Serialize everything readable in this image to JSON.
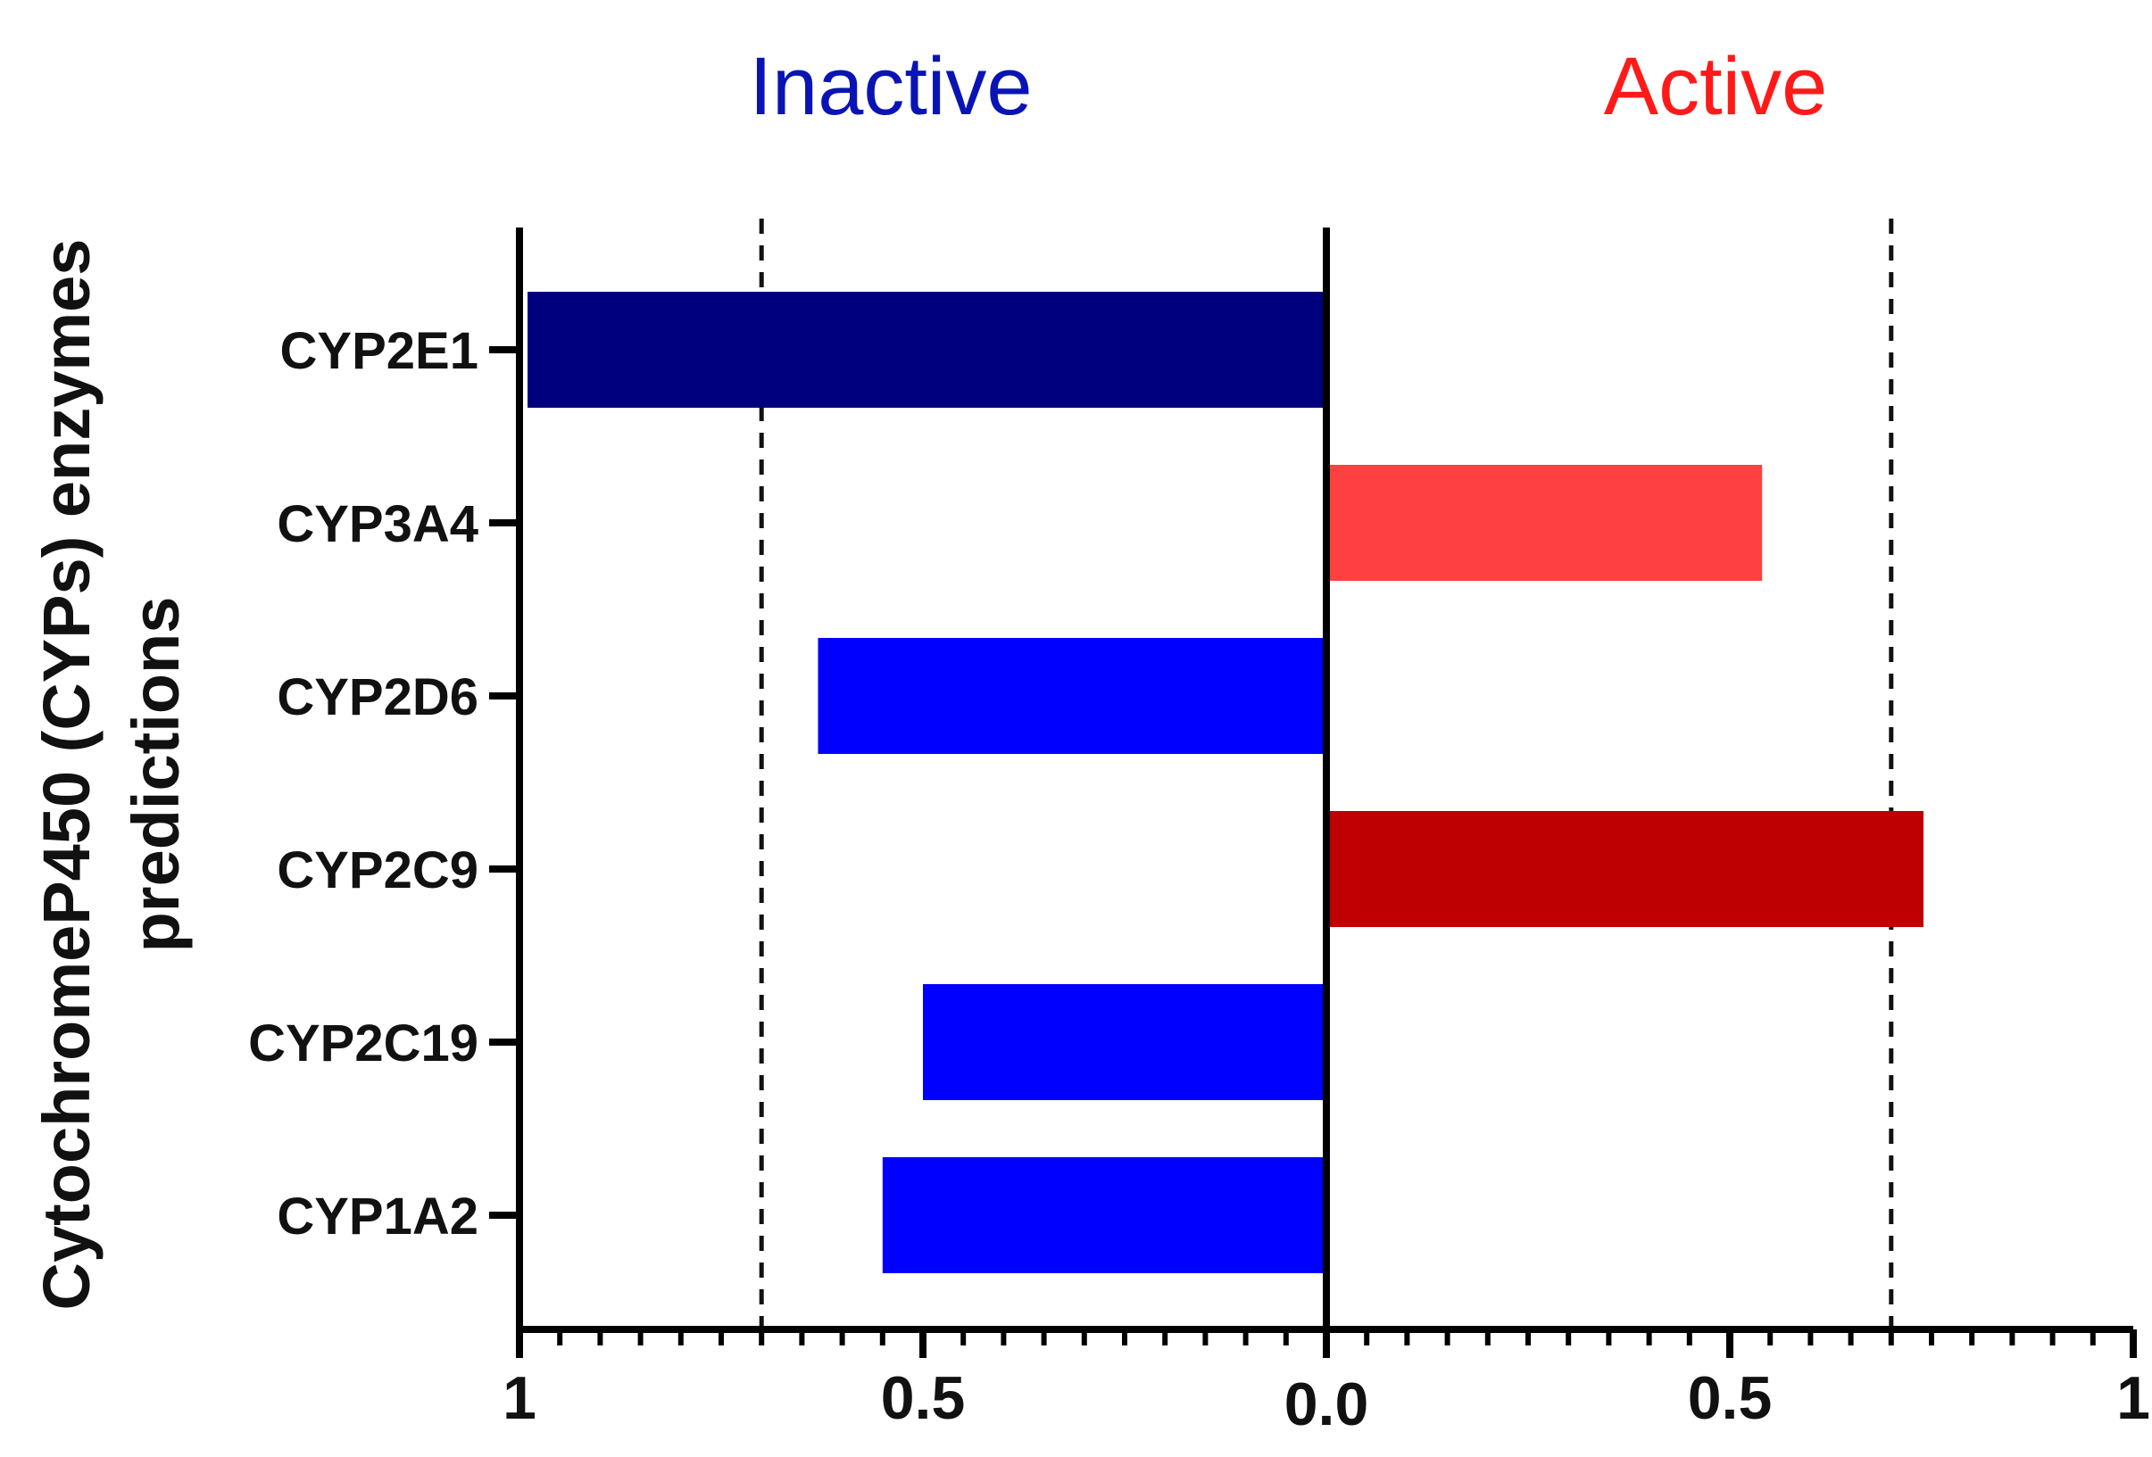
{
  "chart_data": {
    "type": "bar",
    "orientation": "horizontal-diverging",
    "ylabel_line1": "CytochromeP450 (CYPs) enzymes",
    "ylabel_line2": "predictions",
    "side_labels": {
      "left": "Inactive",
      "right": "Active",
      "left_color": "#0a14b4",
      "right_color": "#ff1a1a"
    },
    "categories": [
      "CYP2E1",
      "CYP3A4",
      "CYP2D6",
      "CYP2C9",
      "CYP2C19",
      "CYP1A2"
    ],
    "bars": [
      {
        "category": "CYP2E1",
        "side": "inactive",
        "value": 0.99,
        "color": "#00007f"
      },
      {
        "category": "CYP3A4",
        "side": "active",
        "value": 0.54,
        "color": "#ff4040"
      },
      {
        "category": "CYP2D6",
        "side": "inactive",
        "value": 0.63,
        "color": "#0000ff"
      },
      {
        "category": "CYP2C9",
        "side": "active",
        "value": 0.74,
        "color": "#bf0000"
      },
      {
        "category": "CYP2C19",
        "side": "inactive",
        "value": 0.5,
        "color": "#0000ff"
      },
      {
        "category": "CYP1A2",
        "side": "inactive",
        "value": 0.55,
        "color": "#0000ff"
      }
    ],
    "xlim": [
      -1,
      1
    ],
    "x_tick_labels": [
      {
        "value": -1,
        "label": "1"
      },
      {
        "value": -0.5,
        "label": "0.5"
      },
      {
        "value": 0,
        "label": "0.0"
      },
      {
        "value": 0.5,
        "label": "0.5"
      },
      {
        "value": 1,
        "label": "1"
      }
    ],
    "minor_tick_step": 0.05,
    "thresholds": [
      -0.7,
      0.7
    ]
  }
}
